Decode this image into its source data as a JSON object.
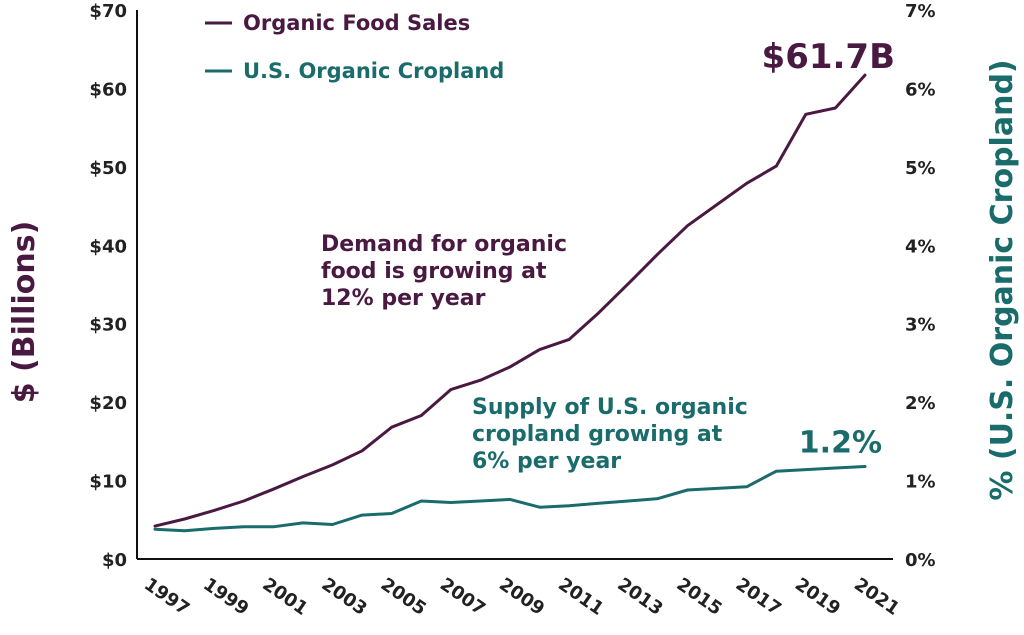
{
  "chart_data": {
    "type": "line",
    "x": [
      1997,
      1998,
      1999,
      2000,
      2001,
      2002,
      2003,
      2004,
      2005,
      2006,
      2007,
      2008,
      2009,
      2010,
      2011,
      2012,
      2013,
      2014,
      2015,
      2016,
      2017,
      2018,
      2019,
      2020,
      2021
    ],
    "xticks": [
      "1997",
      "1999",
      "2001",
      "2003",
      "2005",
      "2007",
      "2009",
      "2011",
      "2013",
      "2015",
      "2017",
      "2019",
      "2021"
    ],
    "ylabel_left": "$ (Billions)",
    "ylabel_right": "% (U.S. Organic Cropland)",
    "ylim_left": [
      0,
      70
    ],
    "ylim_right": [
      0,
      7
    ],
    "yticks_left": [
      "$0",
      "$10",
      "$20",
      "$30",
      "$40",
      "$50",
      "$60",
      "$70"
    ],
    "yticks_right": [
      "0%",
      "1%",
      "2%",
      "3%",
      "4%",
      "5%",
      "6%",
      "7%"
    ],
    "grid": false,
    "legend_position": "top-left",
    "series": [
      {
        "name": "Organic Food Sales",
        "axis": "left",
        "color": "#4a1942",
        "values": [
          4.2,
          5.1,
          6.2,
          7.4,
          8.9,
          10.5,
          12.0,
          13.8,
          16.8,
          18.3,
          21.6,
          22.8,
          24.5,
          26.7,
          28.0,
          31.4,
          35.1,
          38.9,
          42.5,
          45.2,
          47.9,
          50.1,
          56.7,
          57.5,
          61.7
        ],
        "end_label": "$61.7B"
      },
      {
        "name": "U.S. Organic Cropland",
        "axis": "right",
        "color": "#1a6b6b",
        "values": [
          0.38,
          0.36,
          0.39,
          0.41,
          0.41,
          0.46,
          0.44,
          0.56,
          0.58,
          0.74,
          0.72,
          0.74,
          0.76,
          0.66,
          0.68,
          0.71,
          0.74,
          0.77,
          0.88,
          0.9,
          0.92,
          1.12,
          1.14,
          1.16,
          1.18
        ],
        "end_label": "1.2%"
      }
    ],
    "annotations": [
      {
        "color": "#4a1942",
        "lines": [
          "Demand for organic",
          "food is growing at",
          "12% per year"
        ]
      },
      {
        "color": "#1a6b6b",
        "lines": [
          "Supply of U.S. organic",
          "cropland growing at",
          "6% per year"
        ]
      }
    ]
  }
}
